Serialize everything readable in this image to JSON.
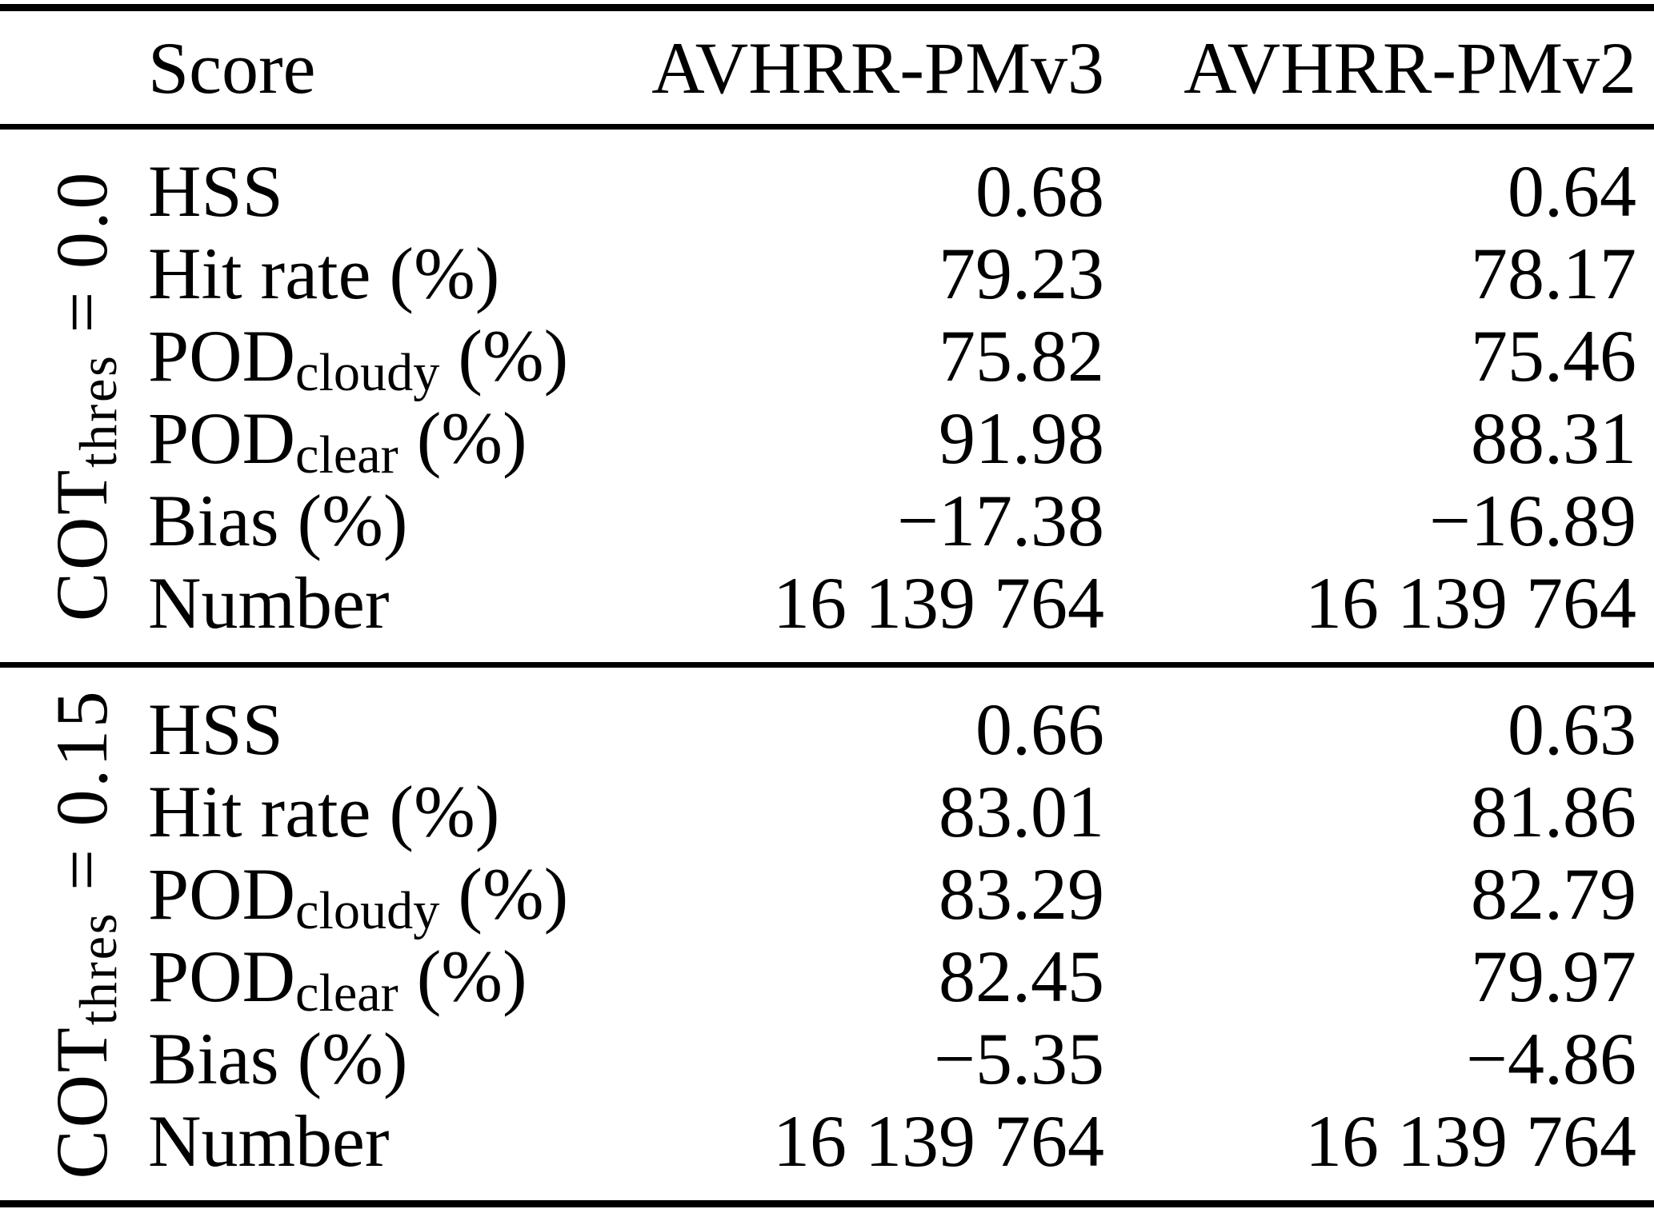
{
  "table": {
    "columns": {
      "score": "Score",
      "v3": "AVHRR-PMv3",
      "v2": "AVHRR-PMv2"
    },
    "sections": [
      {
        "group": {
          "base": "COT",
          "sub": "thres",
          "suffix": " = 0.0"
        },
        "rows": [
          {
            "label": {
              "base": "HSS"
            },
            "v3": "0.68",
            "v2": "0.64"
          },
          {
            "label": {
              "base": "Hit rate (%)"
            },
            "v3": "79.23",
            "v2": "78.17"
          },
          {
            "label": {
              "base": "POD",
              "sub": "cloudy",
              "suffix": " (%)"
            },
            "v3": "75.82",
            "v2": "75.46"
          },
          {
            "label": {
              "base": "POD",
              "sub": "clear",
              "suffix": " (%)"
            },
            "v3": "91.98",
            "v2": "88.31"
          },
          {
            "label": {
              "base": "Bias (%)"
            },
            "v3": "−17.38",
            "v2": "−16.89"
          },
          {
            "label": {
              "base": "Number"
            },
            "v3": "16 139 764",
            "v2": "16 139 764"
          }
        ]
      },
      {
        "group": {
          "base": "COT",
          "sub": "thres",
          "suffix": " = 0.15"
        },
        "rows": [
          {
            "label": {
              "base": "HSS"
            },
            "v3": "0.66",
            "v2": "0.63"
          },
          {
            "label": {
              "base": "Hit rate (%)"
            },
            "v3": "83.01",
            "v2": "81.86"
          },
          {
            "label": {
              "base": "POD",
              "sub": "cloudy",
              "suffix": " (%)"
            },
            "v3": "83.29",
            "v2": "82.79"
          },
          {
            "label": {
              "base": "POD",
              "sub": "clear",
              "suffix": " (%)"
            },
            "v3": "82.45",
            "v2": "79.97"
          },
          {
            "label": {
              "base": "Bias (%)"
            },
            "v3": "−5.35",
            "v2": "−4.86"
          },
          {
            "label": {
              "base": "Number"
            },
            "v3": "16 139 764",
            "v2": "16 139 764"
          }
        ]
      }
    ]
  }
}
